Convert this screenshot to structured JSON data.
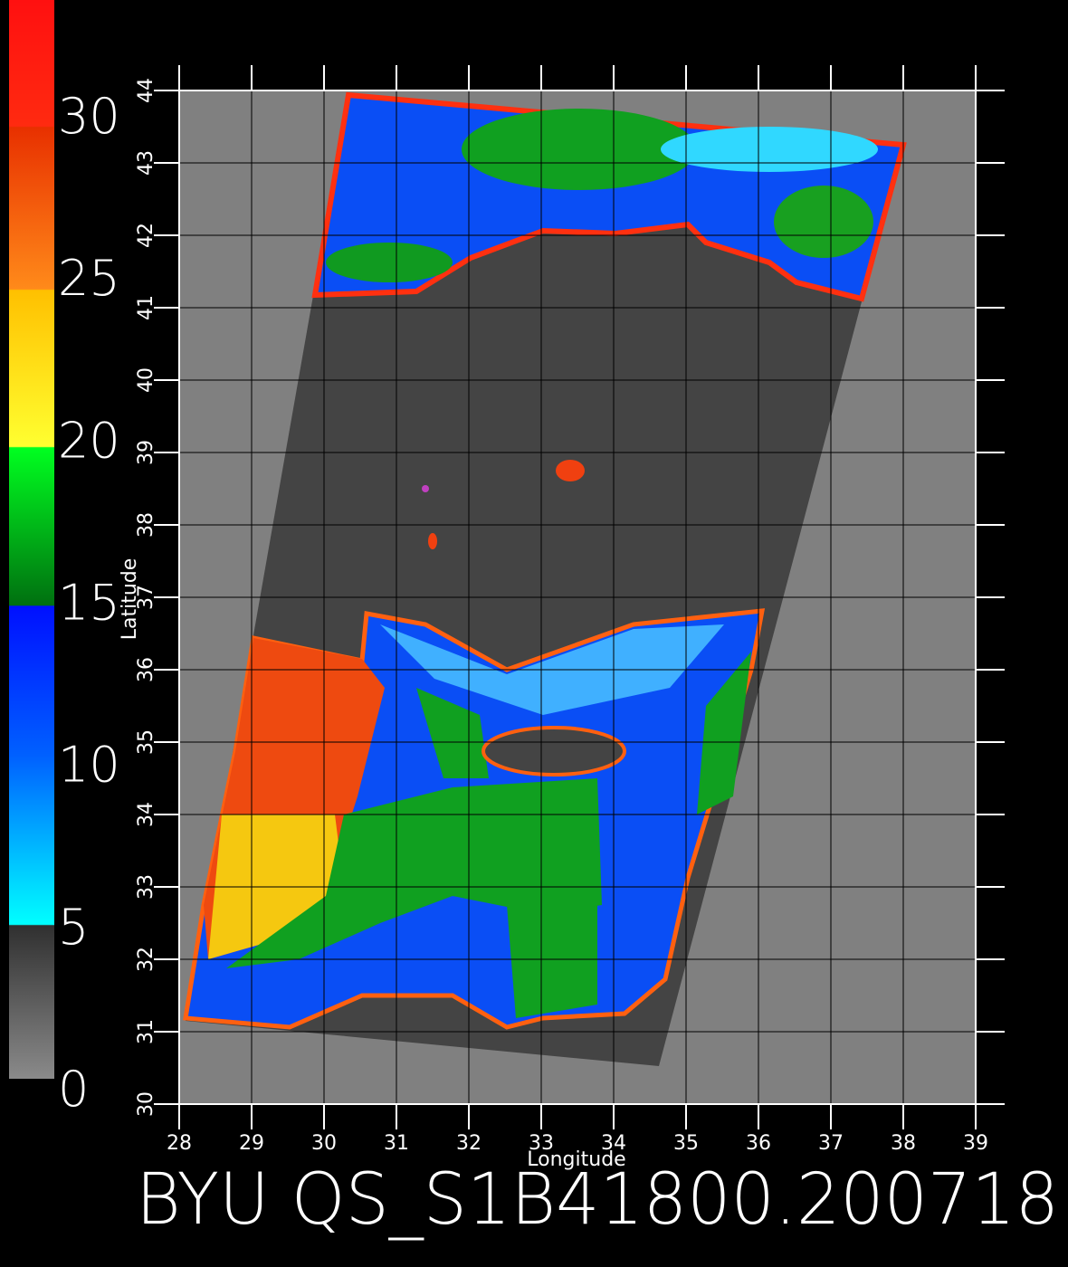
{
  "title": "BYU QS_S1B41800.200718",
  "x_axis": {
    "label": "Longitude",
    "ticks": [
      28,
      29,
      30,
      31,
      32,
      33,
      34,
      35,
      36,
      37,
      38,
      39
    ]
  },
  "y_axis": {
    "label": "Latitude",
    "ticks": [
      30,
      31,
      32,
      33,
      34,
      35,
      36,
      37,
      38,
      39,
      40,
      41,
      42,
      43,
      44
    ]
  },
  "colorbar": {
    "ticks": [
      0,
      5,
      10,
      15,
      20,
      25,
      30
    ]
  }
}
